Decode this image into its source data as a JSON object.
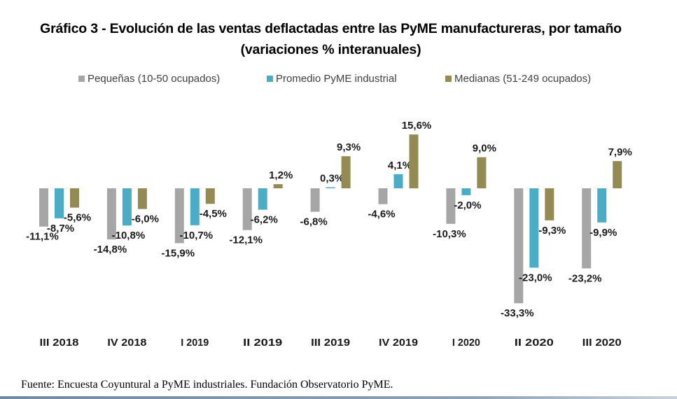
{
  "title": {
    "line1": "Gráfico 3 - Evolución de las ventas deflactadas entre las PyME manufactureras, por tamaño",
    "line2": "(variaciones % interanuales)"
  },
  "source": "Fuente: Encuesta Coyuntural a PyME industriales. Fundación Observatorio PyME.",
  "chart_data": {
    "type": "bar",
    "title": "Gráfico 3 - Evolución de las ventas deflactadas entre las PyME manufactureras, por tamaño (variaciones % interanuales)",
    "xlabel": "",
    "ylabel": "",
    "grid": false,
    "legend_position": "top",
    "ylim": [
      -35,
      17
    ],
    "categories": [
      "III 2018",
      "IV 2018",
      "I 2019",
      "II 2019",
      "III 2019",
      "IV 2019",
      "I 2020",
      "II 2020",
      "III 2020"
    ],
    "series": [
      {
        "name": "Pequeñas (10-50 ocupados)",
        "color": "#a6a6a6",
        "values": [
          -11.1,
          -14.8,
          -15.9,
          -12.1,
          -6.8,
          -4.6,
          -10.3,
          -33.3,
          -23.2
        ],
        "labels": [
          "-11,1%",
          "-14,8%",
          "-15,9%",
          "-12,1%",
          "-6,8%",
          "-4,6%",
          "-10,3%",
          "-33,3%",
          "-23,2%"
        ]
      },
      {
        "name": "Promedio PyME industrial",
        "color": "#4bacc6",
        "values": [
          -8.7,
          -10.8,
          -10.7,
          -6.2,
          0.3,
          4.1,
          -2.0,
          -23.0,
          -9.9
        ],
        "labels": [
          "-8,7%",
          "-10,8%",
          "-10,7%",
          "-6,2%",
          "0,3%",
          "4,1%",
          "-2,0%",
          "-23,0%",
          "-9,9%"
        ]
      },
      {
        "name": "Medianas (51-249 ocupados)",
        "color": "#948a54",
        "values": [
          -5.6,
          -6.0,
          -4.5,
          1.2,
          9.3,
          15.6,
          9.0,
          -9.3,
          7.9
        ],
        "labels": [
          "-5,6%",
          "-6,0%",
          "-4,5%",
          "1,2%",
          "9,3%",
          "15,6%",
          "9,0%",
          "-9,3%",
          "7,9%"
        ]
      }
    ]
  }
}
